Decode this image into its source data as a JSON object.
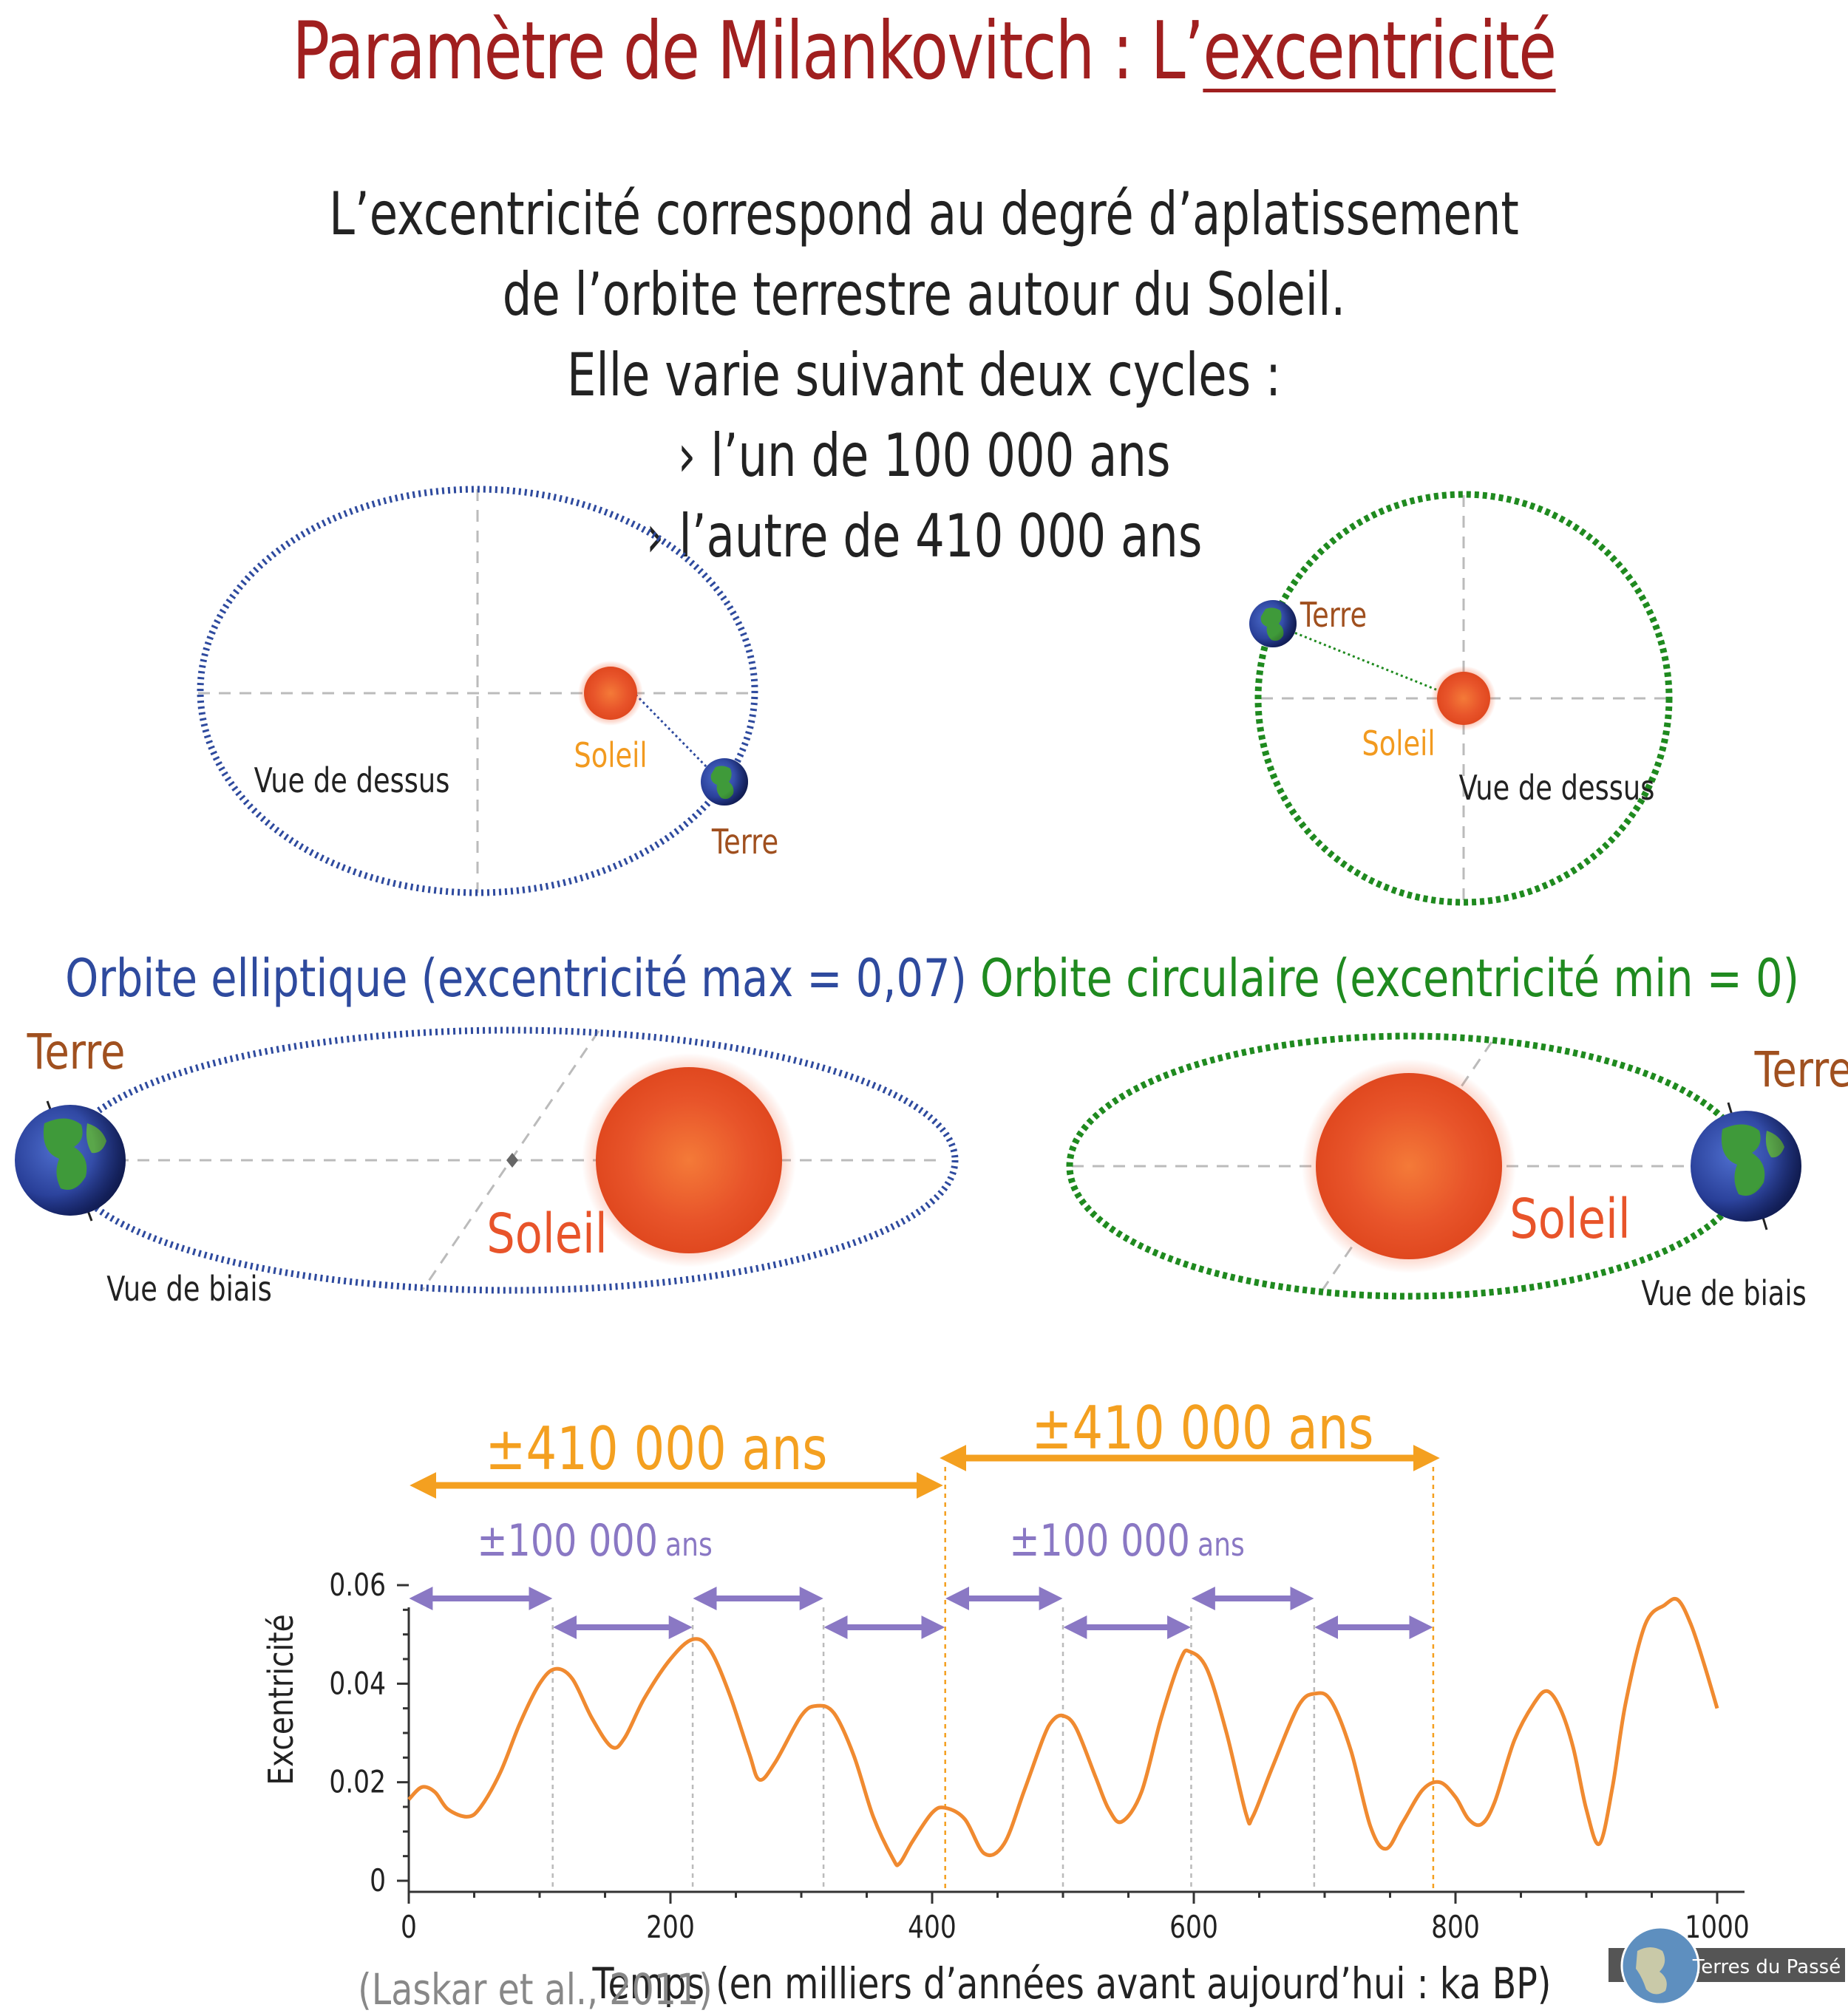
{
  "title": {
    "prefix": "Paramètre de Milankovitch : L’",
    "underlined": "excentricité"
  },
  "intro": [
    "L’excentricité correspond au degré d’aplatissement",
    "de l’orbite terrestre autour du Soleil.",
    "Elle varie suivant deux cycles :",
    "› l’un de 100 000 ans",
    "› l’autre de 410 000 ans"
  ],
  "colors": {
    "title": "#a01f1f",
    "elliptic": "#2e4a9e",
    "circular": "#1f8a1f",
    "sun_label": "#f29a1f",
    "earth_label": "#a0501f",
    "curve": "#f08a30",
    "cycle410": "#f4a020",
    "cycle100": "#8a78c4"
  },
  "elliptic": {
    "top_sun_label": "Soleil",
    "top_earth_label": "Terre",
    "top_view_label": "Vue de dessus",
    "caption": "Orbite elliptique (excentricité max = 0,07)",
    "side_earth_label": "Terre",
    "side_sun_label": "Soleil",
    "side_view_label": "Vue de biais"
  },
  "circular": {
    "top_earth_label": "Terre",
    "top_sun_label": "Soleil",
    "top_view_label": "Vue de dessus",
    "caption": "Orbite circulaire (excentricité min = 0)",
    "side_earth_label": "Terre",
    "side_sun_label": "Soleil",
    "side_view_label": "Vue de biais"
  },
  "cycles": {
    "long_label": "±410 000 ans",
    "short_label": "±100 000",
    "short_unit": "ans"
  },
  "chart_data": {
    "type": "line",
    "title": "",
    "xlabel": "Temps (en milliers d’années avant aujourd’hui : ka BP)",
    "ylabel": "Excentricité",
    "xlim": [
      0,
      1000
    ],
    "ylim": [
      0,
      0.06
    ],
    "xticks": [
      "0",
      "200",
      "400",
      "600",
      "800",
      "1000"
    ],
    "yticks": [
      "0",
      "0.02",
      "0.04",
      "0.06"
    ],
    "grid": false,
    "series": [
      {
        "x": [
          0,
          10,
          20,
          30,
          45,
          55,
          70,
          85,
          100,
          112,
          125,
          140,
          155,
          165,
          180,
          200,
          217,
          230,
          245,
          260,
          268,
          280,
          300,
          312,
          325,
          340,
          355,
          370,
          375,
          385,
          400,
          410,
          425,
          440,
          455,
          470,
          485,
          492,
          500,
          510,
          525,
          535,
          545,
          560,
          575,
          590,
          597,
          610,
          625,
          640,
          645,
          660,
          680,
          693,
          705,
          720,
          735,
          747,
          760,
          775,
          788,
          800,
          810,
          820,
          830,
          845,
          860,
          870,
          880,
          890,
          900,
          910,
          920,
          930,
          945,
          960,
          970,
          980,
          990,
          1000
        ],
        "y": [
          0.0165,
          0.019,
          0.018,
          0.0145,
          0.013,
          0.015,
          0.022,
          0.032,
          0.04,
          0.043,
          0.041,
          0.033,
          0.0272,
          0.029,
          0.037,
          0.045,
          0.049,
          0.047,
          0.038,
          0.026,
          0.0205,
          0.024,
          0.0335,
          0.0355,
          0.034,
          0.0255,
          0.013,
          0.0045,
          0.0035,
          0.008,
          0.0138,
          0.0148,
          0.0125,
          0.0055,
          0.0075,
          0.018,
          0.029,
          0.0325,
          0.0335,
          0.031,
          0.021,
          0.0145,
          0.012,
          0.018,
          0.033,
          0.045,
          0.0465,
          0.043,
          0.03,
          0.0135,
          0.013,
          0.023,
          0.0355,
          0.038,
          0.0365,
          0.0265,
          0.011,
          0.0065,
          0.012,
          0.0185,
          0.02,
          0.017,
          0.0125,
          0.0115,
          0.016,
          0.0285,
          0.036,
          0.0385,
          0.035,
          0.027,
          0.0145,
          0.0075,
          0.019,
          0.036,
          0.052,
          0.056,
          0.057,
          0.052,
          0.044,
          0.035
        ]
      }
    ]
  },
  "source": "(Laskar et al., 2011)",
  "logo_text": "Terres du Passé"
}
